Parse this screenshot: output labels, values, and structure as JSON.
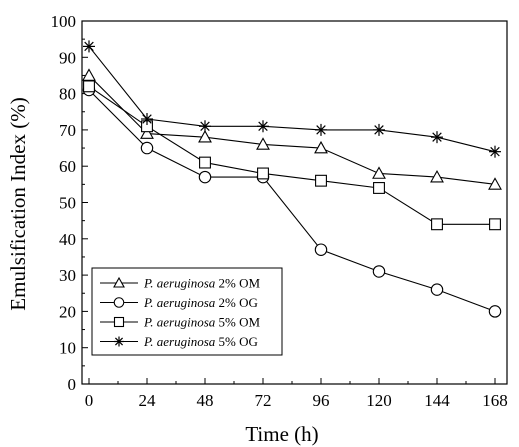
{
  "chart_data": {
    "type": "line",
    "xlabel": "Time (h)",
    "ylabel": "Emulsification Index (%)",
    "xlim": [
      0,
      168
    ],
    "ylim": [
      0,
      100
    ],
    "x_ticks": [
      "0",
      "24",
      "48",
      "72",
      "96",
      "120",
      "144",
      "168"
    ],
    "y_ticks": [
      "0",
      "10",
      "20",
      "30",
      "40",
      "50",
      "60",
      "70",
      "80",
      "90",
      "100"
    ],
    "grid": false,
    "legend_position": "bottom-left",
    "x": [
      0,
      24,
      48,
      72,
      96,
      120,
      144,
      168
    ],
    "series": [
      {
        "name": "P. aeruginosa 2% OM",
        "name_italic": "P. aeruginosa",
        "name_rest": " 2% OM",
        "marker": "triangle",
        "values": [
          85,
          69,
          68,
          66,
          65,
          58,
          57,
          55
        ]
      },
      {
        "name": "P. aeruginosa 2% OG",
        "name_italic": "P. aeruginosa",
        "name_rest": " 2% OG",
        "marker": "circle",
        "values": [
          81,
          65,
          57,
          57,
          37,
          31,
          26,
          20
        ]
      },
      {
        "name": "P. aeruginosa 5% OM",
        "name_italic": "P. aeruginosa",
        "name_rest": " 5% OM",
        "marker": "square",
        "values": [
          82,
          71,
          61,
          58,
          56,
          54,
          44,
          44
        ]
      },
      {
        "name": "P. aeruginosa 5% OG",
        "name_italic": "P. aeruginosa",
        "name_rest": " 5% OG",
        "marker": "asterisk",
        "values": [
          93,
          73,
          71,
          71,
          70,
          70,
          68,
          64
        ]
      }
    ],
    "colors": {
      "line": "#000000",
      "marker_fill": "#ffffff"
    }
  }
}
